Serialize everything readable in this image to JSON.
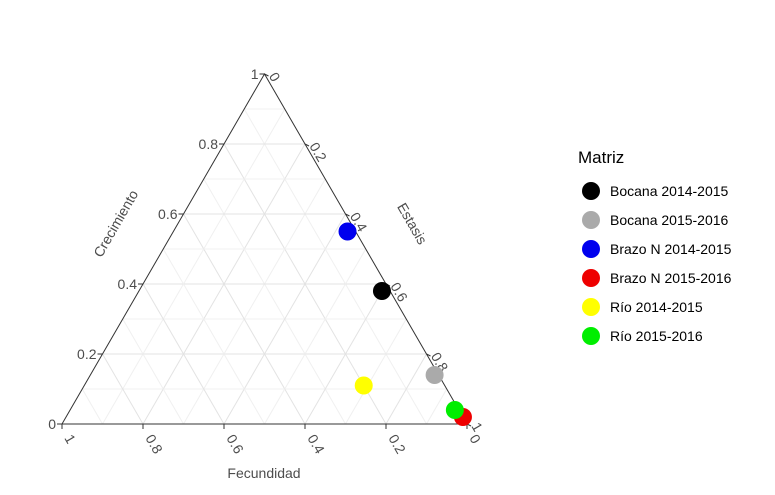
{
  "chart_data": {
    "type": "ternary-scatter",
    "axes": {
      "fecundidad": {
        "label": "Fecundidad",
        "ticks": [
          "1",
          "0.8",
          "0.6",
          "0.4",
          "0.2",
          "0"
        ]
      },
      "crecimiento": {
        "label": "Crecimiento",
        "ticks": [
          "0",
          "0.2",
          "0.4",
          "0.6",
          "0.8",
          "1"
        ]
      },
      "estasis": {
        "label": "Estasis",
        "ticks": [
          "0",
          "0.2",
          "0.4",
          "0.6",
          "0.8",
          "1"
        ]
      }
    },
    "grid": true,
    "legend": {
      "title": "Matriz",
      "position": "right"
    },
    "series": [
      {
        "name": "Bocana 2014-2015",
        "color": "#000000",
        "fecundidad": 0.02,
        "crecimiento": 0.38,
        "estasis": 0.6
      },
      {
        "name": "Bocana 2015-2016",
        "color": "#aaaaaa",
        "fecundidad": 0.01,
        "crecimiento": 0.14,
        "estasis": 0.85
      },
      {
        "name": "Brazo N 2014-2015",
        "color": "#0000ee",
        "fecundidad": 0.02,
        "crecimiento": 0.55,
        "estasis": 0.43
      },
      {
        "name": "Brazo N 2015-2016",
        "color": "#ee0000",
        "fecundidad": 0.0,
        "crecimiento": 0.02,
        "estasis": 0.98
      },
      {
        "name": "Río 2014-2015",
        "color": "#ffff00",
        "fecundidad": 0.2,
        "crecimiento": 0.11,
        "estasis": 0.69
      },
      {
        "name": "Río 2015-2016",
        "color": "#00ee00",
        "fecundidad": 0.01,
        "crecimiento": 0.04,
        "estasis": 0.95
      }
    ]
  }
}
